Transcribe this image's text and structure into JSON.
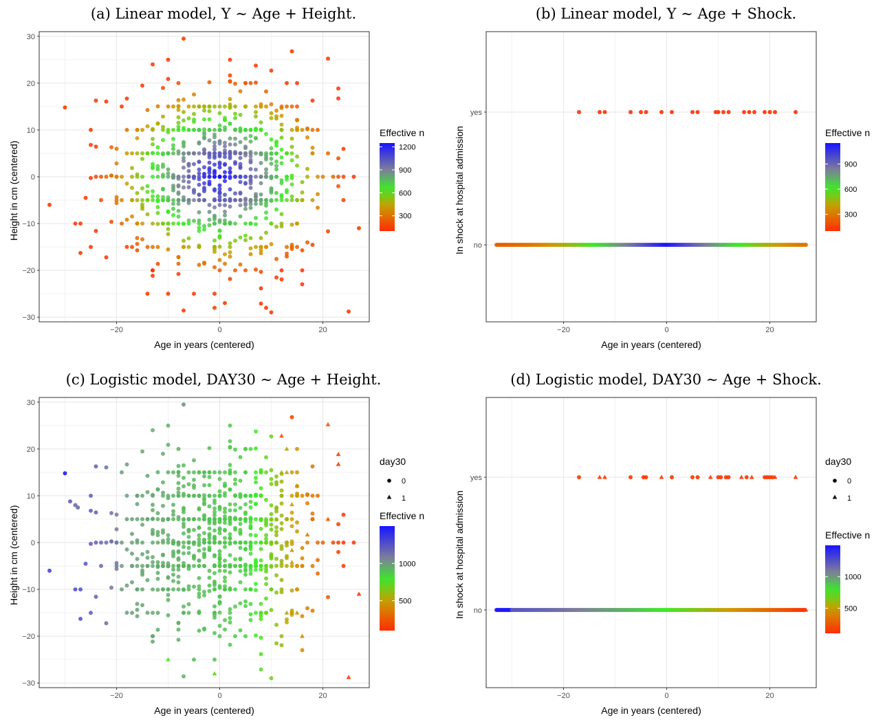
{
  "panels": [
    {
      "id": "a",
      "title": "(a) Linear model, Y ∼ Age + Height.",
      "xlabel": "Age in years (centered)",
      "ylabel": "Height in cm (centered)"
    },
    {
      "id": "b",
      "title": "(b) Linear model, Y ∼ Age + Shock.",
      "xlabel": "Age in years (centered)",
      "ylabel": "In shock at hospital admission"
    },
    {
      "id": "c",
      "title": "(c) Logistic model, DAY30 ∼ Age + Height.",
      "xlabel": "Age in years (centered)",
      "ylabel": "Height in cm (centered)"
    },
    {
      "id": "d",
      "title": "(d) Logistic model, DAY30 ∼ Age + Shock.",
      "xlabel": "Age in years (centered)",
      "ylabel": "In shock at hospital admission"
    }
  ],
  "chart_data": [
    {
      "type": "scatter",
      "panel": "a",
      "title": "(a) Linear model, Y ∼ Age + Height.",
      "xlabel": "Age in years (centered)",
      "ylabel": "Height in cm (centered)",
      "xlim": [
        -35,
        29
      ],
      "ylim": [
        -31,
        31
      ],
      "x_ticks": [
        -20,
        0,
        20
      ],
      "x_tick_labels": [
        "−20",
        "0",
        "20"
      ],
      "y_ticks": [
        -30,
        -20,
        -10,
        0,
        10,
        20,
        30
      ],
      "y_tick_labels": [
        "−30",
        "−20",
        "−10",
        "0",
        "10",
        "20",
        "30"
      ],
      "grid": true,
      "color_legend": {
        "title": "Effective n",
        "ticks": [
          300,
          600,
          900,
          1200
        ],
        "tick_labels": [
          "300",
          "600",
          "900",
          "1200"
        ],
        "range": [
          100,
          1250
        ]
      },
      "legend_position": "right",
      "point_spec": {
        "seed": 11,
        "count": 900,
        "model": "elliptical"
      },
      "points": [
        {
          "x": -33,
          "y": -6,
          "n": 150
        },
        {
          "x": -7,
          "y": 29.5,
          "n": 160
        },
        {
          "x": 14,
          "y": 26.8,
          "n": 150
        },
        {
          "x": 25,
          "y": -28.8,
          "n": 140
        },
        {
          "x": -1,
          "y": -28,
          "n": 180
        },
        {
          "x": 1,
          "y": -27,
          "n": 170
        },
        {
          "x": 9,
          "y": -28,
          "n": 170
        },
        {
          "x": -14,
          "y": -25,
          "n": 160
        },
        {
          "x": -10,
          "y": -25,
          "n": 160
        },
        {
          "x": -30,
          "y": 14.8,
          "n": 150
        },
        {
          "x": 27,
          "y": -11,
          "n": 150
        }
      ]
    },
    {
      "type": "scatter",
      "panel": "b",
      "xlabel": "Age in years (centered)",
      "ylabel": "In shock at hospital admission",
      "xlim": [
        -35,
        29
      ],
      "x_ticks": [
        -20,
        0,
        20
      ],
      "x_tick_labels": [
        "−20",
        "0",
        "20"
      ],
      "y_categories": [
        "no",
        "yes"
      ],
      "grid": true,
      "color_legend": {
        "title": "Effective n",
        "ticks": [
          300,
          600,
          900
        ],
        "tick_labels": [
          "300",
          "600",
          "900"
        ],
        "range": [
          100,
          1150
        ]
      },
      "legend_position": "right",
      "points_yes": [
        {
          "x": -17,
          "n": 110
        },
        {
          "x": -13,
          "n": 110
        },
        {
          "x": -12,
          "n": 110
        },
        {
          "x": -7,
          "n": 110
        },
        {
          "x": -5,
          "n": 110
        },
        {
          "x": -4,
          "n": 110
        },
        {
          "x": -1,
          "n": 110
        },
        {
          "x": 1,
          "n": 110
        },
        {
          "x": 5,
          "n": 110
        },
        {
          "x": 6,
          "n": 110
        },
        {
          "x": 9.5,
          "n": 110
        },
        {
          "x": 10,
          "n": 110
        },
        {
          "x": 11,
          "n": 110
        },
        {
          "x": 12,
          "n": 110
        },
        {
          "x": 15,
          "n": 110
        },
        {
          "x": 16,
          "n": 110
        },
        {
          "x": 17,
          "n": 110
        },
        {
          "x": 19,
          "n": 110
        },
        {
          "x": 20,
          "n": 110
        },
        {
          "x": 21,
          "n": 110
        },
        {
          "x": 25,
          "n": 110
        }
      ],
      "no_row": {
        "x_min": -33,
        "x_max": 27,
        "peak_x": 0,
        "peak_n": 1150,
        "edge_n": 230
      }
    },
    {
      "type": "scatter",
      "panel": "c",
      "xlabel": "Age in years (centered)",
      "ylabel": "Height in cm (centered)",
      "xlim": [
        -35,
        29
      ],
      "ylim": [
        -31,
        31
      ],
      "x_ticks": [
        -20,
        0,
        20
      ],
      "x_tick_labels": [
        "−20",
        "0",
        "20"
      ],
      "y_ticks": [
        -30,
        -20,
        -10,
        0,
        10,
        20,
        30
      ],
      "y_tick_labels": [
        "−30",
        "−20",
        "−10",
        "0",
        "10",
        "20",
        "30"
      ],
      "grid": true,
      "shape_legend": {
        "title": "day30",
        "items": [
          {
            "label": "0",
            "shape": "circle"
          },
          {
            "label": "1",
            "shape": "triangle"
          }
        ]
      },
      "color_legend": {
        "title": "Effective n",
        "ticks": [
          500,
          1000
        ],
        "tick_labels": [
          "500",
          "1000"
        ],
        "range": [
          100,
          1500
        ]
      },
      "legend_position": "right",
      "point_spec": {
        "seed": 11,
        "count": 900,
        "model": "age_gradient"
      },
      "points": [
        {
          "x": -30,
          "y": 14.8,
          "n": 1480
        },
        {
          "x": -29,
          "y": 8.8,
          "n": 1200
        },
        {
          "x": -28,
          "y": 8,
          "n": 1150
        },
        {
          "x": -27.5,
          "y": 7.5,
          "n": 1150
        },
        {
          "x": -33,
          "y": -6,
          "n": 1300
        },
        {
          "x": -7,
          "y": 29.5,
          "n": 1000
        },
        {
          "x": 14,
          "y": 26.8,
          "n": 200
        },
        {
          "x": 25,
          "y": -28.8,
          "n": 130,
          "shape": "triangle"
        },
        {
          "x": -10,
          "y": -25,
          "n": 750,
          "shape": "triangle"
        },
        {
          "x": -1,
          "y": -28,
          "n": 700,
          "shape": "triangle"
        },
        {
          "x": 12,
          "y": 22.8,
          "n": 230,
          "shape": "triangle"
        },
        {
          "x": 27,
          "y": -11,
          "n": 150,
          "shape": "triangle"
        }
      ]
    },
    {
      "type": "scatter",
      "panel": "d",
      "xlabel": "Age in years (centered)",
      "ylabel": "In shock at hospital admission",
      "xlim": [
        -35,
        29
      ],
      "x_ticks": [
        -20,
        0,
        20
      ],
      "x_tick_labels": [
        "−20",
        "0",
        "20"
      ],
      "y_categories": [
        "no",
        "yes"
      ],
      "grid": true,
      "shape_legend": {
        "title": "day30",
        "items": [
          {
            "label": "0",
            "shape": "circle"
          },
          {
            "label": "1",
            "shape": "triangle"
          }
        ]
      },
      "color_legend": {
        "title": "Effective n",
        "ticks": [
          500,
          1000
        ],
        "tick_labels": [
          "500",
          "1000"
        ],
        "range": [
          100,
          1500
        ]
      },
      "legend_position": "right",
      "points_yes": [
        {
          "x": -17,
          "shape": "circle"
        },
        {
          "x": -13,
          "shape": "triangle"
        },
        {
          "x": -12,
          "shape": "triangle"
        },
        {
          "x": -7,
          "shape": "circle"
        },
        {
          "x": -4.5,
          "shape": "circle"
        },
        {
          "x": -4,
          "shape": "circle"
        },
        {
          "x": -1,
          "shape": "triangle"
        },
        {
          "x": 1,
          "shape": "circle"
        },
        {
          "x": 5,
          "shape": "circle"
        },
        {
          "x": 6,
          "shape": "circle"
        },
        {
          "x": 8.5,
          "shape": "triangle"
        },
        {
          "x": 10,
          "shape": "circle"
        },
        {
          "x": 10.5,
          "shape": "circle"
        },
        {
          "x": 11.5,
          "shape": "circle"
        },
        {
          "x": 12,
          "shape": "circle"
        },
        {
          "x": 14.5,
          "shape": "triangle"
        },
        {
          "x": 15.5,
          "shape": "circle"
        },
        {
          "x": 16.5,
          "shape": "triangle"
        },
        {
          "x": 19,
          "shape": "circle"
        },
        {
          "x": 19.5,
          "shape": "circle"
        },
        {
          "x": 20,
          "shape": "circle"
        },
        {
          "x": 20.5,
          "shape": "circle"
        },
        {
          "x": 21,
          "shape": "triangle"
        },
        {
          "x": 25,
          "shape": "triangle"
        }
      ],
      "no_row": {
        "x_min": -33,
        "x_max": 27,
        "start_n": 1480,
        "end_n": 120,
        "triangle_x": [
          27
        ]
      }
    }
  ]
}
